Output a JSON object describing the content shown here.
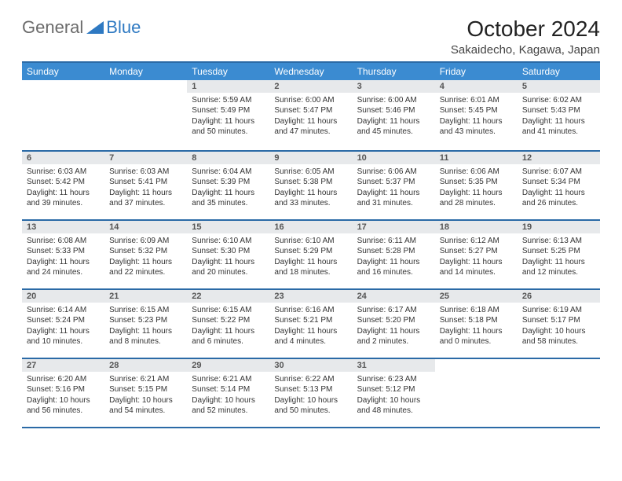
{
  "brand": {
    "part1": "General",
    "part2": "Blue",
    "accent_color": "#2e79c2",
    "text_color": "#6b6b6b"
  },
  "title": "October 2024",
  "subtitle": "Sakaidecho, Kagawa, Japan",
  "colors": {
    "header_bg": "#3b8bd1",
    "header_border": "#2b6aa6",
    "daynum_bg": "#e7e9eb"
  },
  "weekdays": [
    "Sunday",
    "Monday",
    "Tuesday",
    "Wednesday",
    "Thursday",
    "Friday",
    "Saturday"
  ],
  "weeks": [
    [
      {
        "empty": true
      },
      {
        "empty": true
      },
      {
        "n": "1",
        "sunrise": "5:59 AM",
        "sunset": "5:49 PM",
        "dl": "11 hours and 50 minutes."
      },
      {
        "n": "2",
        "sunrise": "6:00 AM",
        "sunset": "5:47 PM",
        "dl": "11 hours and 47 minutes."
      },
      {
        "n": "3",
        "sunrise": "6:00 AM",
        "sunset": "5:46 PM",
        "dl": "11 hours and 45 minutes."
      },
      {
        "n": "4",
        "sunrise": "6:01 AM",
        "sunset": "5:45 PM",
        "dl": "11 hours and 43 minutes."
      },
      {
        "n": "5",
        "sunrise": "6:02 AM",
        "sunset": "5:43 PM",
        "dl": "11 hours and 41 minutes."
      }
    ],
    [
      {
        "n": "6",
        "sunrise": "6:03 AM",
        "sunset": "5:42 PM",
        "dl": "11 hours and 39 minutes."
      },
      {
        "n": "7",
        "sunrise": "6:03 AM",
        "sunset": "5:41 PM",
        "dl": "11 hours and 37 minutes."
      },
      {
        "n": "8",
        "sunrise": "6:04 AM",
        "sunset": "5:39 PM",
        "dl": "11 hours and 35 minutes."
      },
      {
        "n": "9",
        "sunrise": "6:05 AM",
        "sunset": "5:38 PM",
        "dl": "11 hours and 33 minutes."
      },
      {
        "n": "10",
        "sunrise": "6:06 AM",
        "sunset": "5:37 PM",
        "dl": "11 hours and 31 minutes."
      },
      {
        "n": "11",
        "sunrise": "6:06 AM",
        "sunset": "5:35 PM",
        "dl": "11 hours and 28 minutes."
      },
      {
        "n": "12",
        "sunrise": "6:07 AM",
        "sunset": "5:34 PM",
        "dl": "11 hours and 26 minutes."
      }
    ],
    [
      {
        "n": "13",
        "sunrise": "6:08 AM",
        "sunset": "5:33 PM",
        "dl": "11 hours and 24 minutes."
      },
      {
        "n": "14",
        "sunrise": "6:09 AM",
        "sunset": "5:32 PM",
        "dl": "11 hours and 22 minutes."
      },
      {
        "n": "15",
        "sunrise": "6:10 AM",
        "sunset": "5:30 PM",
        "dl": "11 hours and 20 minutes."
      },
      {
        "n": "16",
        "sunrise": "6:10 AM",
        "sunset": "5:29 PM",
        "dl": "11 hours and 18 minutes."
      },
      {
        "n": "17",
        "sunrise": "6:11 AM",
        "sunset": "5:28 PM",
        "dl": "11 hours and 16 minutes."
      },
      {
        "n": "18",
        "sunrise": "6:12 AM",
        "sunset": "5:27 PM",
        "dl": "11 hours and 14 minutes."
      },
      {
        "n": "19",
        "sunrise": "6:13 AM",
        "sunset": "5:25 PM",
        "dl": "11 hours and 12 minutes."
      }
    ],
    [
      {
        "n": "20",
        "sunrise": "6:14 AM",
        "sunset": "5:24 PM",
        "dl": "11 hours and 10 minutes."
      },
      {
        "n": "21",
        "sunrise": "6:15 AM",
        "sunset": "5:23 PM",
        "dl": "11 hours and 8 minutes."
      },
      {
        "n": "22",
        "sunrise": "6:15 AM",
        "sunset": "5:22 PM",
        "dl": "11 hours and 6 minutes."
      },
      {
        "n": "23",
        "sunrise": "6:16 AM",
        "sunset": "5:21 PM",
        "dl": "11 hours and 4 minutes."
      },
      {
        "n": "24",
        "sunrise": "6:17 AM",
        "sunset": "5:20 PM",
        "dl": "11 hours and 2 minutes."
      },
      {
        "n": "25",
        "sunrise": "6:18 AM",
        "sunset": "5:18 PM",
        "dl": "11 hours and 0 minutes."
      },
      {
        "n": "26",
        "sunrise": "6:19 AM",
        "sunset": "5:17 PM",
        "dl": "10 hours and 58 minutes."
      }
    ],
    [
      {
        "n": "27",
        "sunrise": "6:20 AM",
        "sunset": "5:16 PM",
        "dl": "10 hours and 56 minutes."
      },
      {
        "n": "28",
        "sunrise": "6:21 AM",
        "sunset": "5:15 PM",
        "dl": "10 hours and 54 minutes."
      },
      {
        "n": "29",
        "sunrise": "6:21 AM",
        "sunset": "5:14 PM",
        "dl": "10 hours and 52 minutes."
      },
      {
        "n": "30",
        "sunrise": "6:22 AM",
        "sunset": "5:13 PM",
        "dl": "10 hours and 50 minutes."
      },
      {
        "n": "31",
        "sunrise": "6:23 AM",
        "sunset": "5:12 PM",
        "dl": "10 hours and 48 minutes."
      },
      {
        "empty": true
      },
      {
        "empty": true
      }
    ]
  ],
  "labels": {
    "sunrise": "Sunrise:",
    "sunset": "Sunset:",
    "daylight": "Daylight:"
  }
}
